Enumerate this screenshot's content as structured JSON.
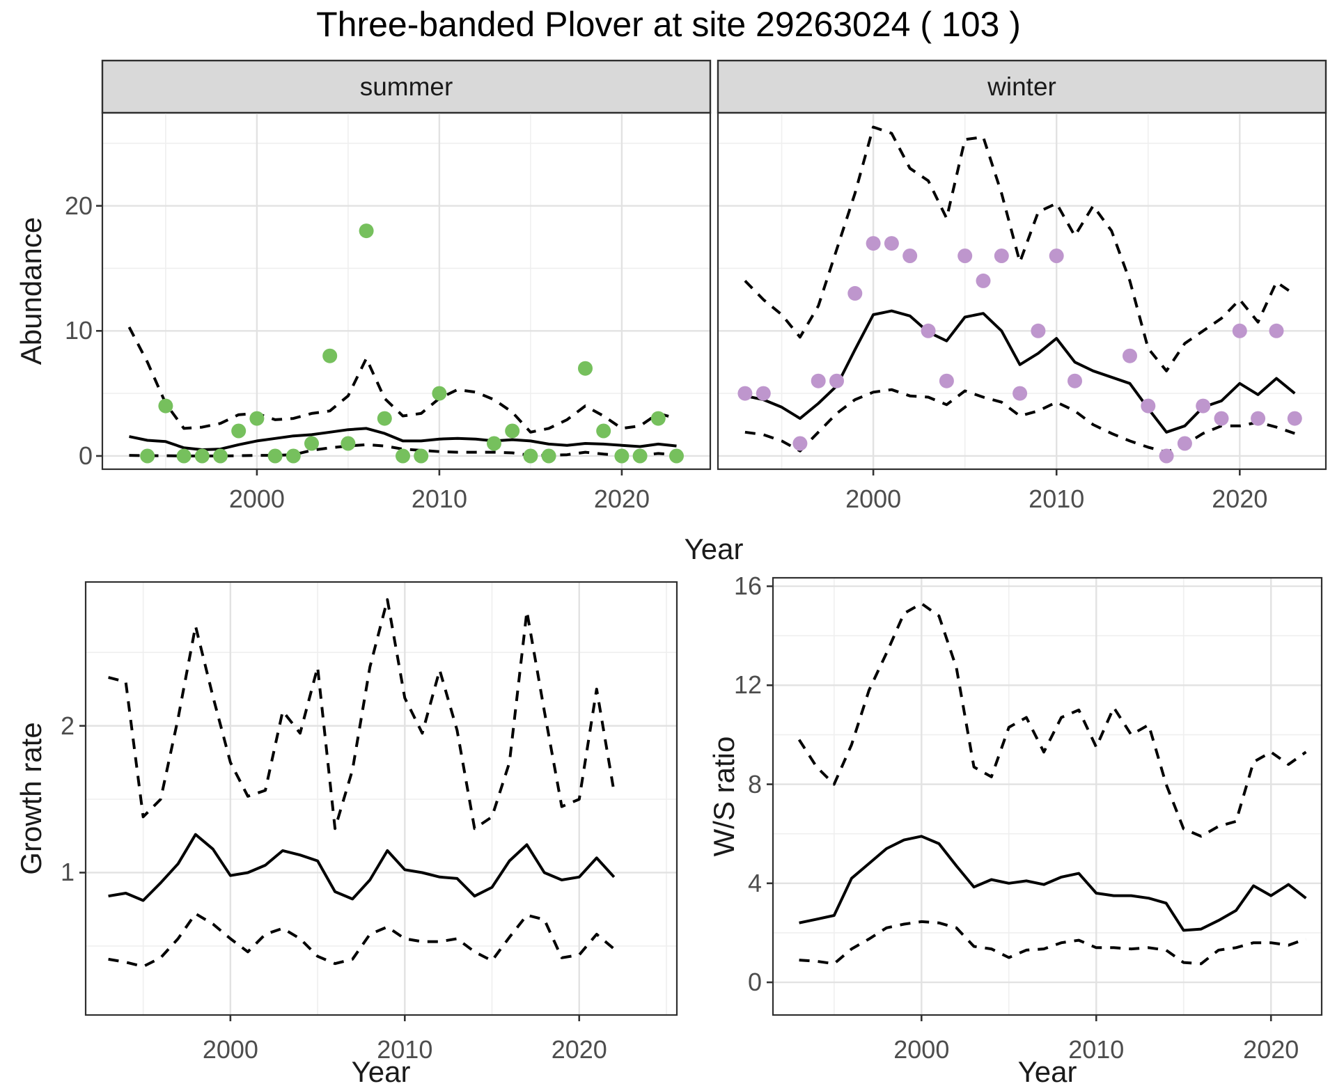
{
  "title": "Three-banded Plover at site 29263024 ( 103 )",
  "colors": {
    "summer_point": "#76C05D",
    "winter_point": "#BE96CD",
    "strip_bg": "#D9D9D9",
    "panel_border": "#2F2F2F",
    "grid_major": "#E2E2E2",
    "grid_minor": "#EFEFEF",
    "line": "#000000",
    "tick": "#333333",
    "axis_text": "#4d4d4d"
  },
  "chart_data": [
    {
      "id": "abundance-summer",
      "type": "line",
      "facet_label": "summer",
      "xlabel": "Year",
      "ylabel": "Abundance",
      "xlim": [
        1991.53,
        2024.85
      ],
      "ylim": [
        -1.06,
        27.44
      ],
      "x_ticks": [
        2000,
        2010,
        2020
      ],
      "x_minor": [
        1995,
        2005,
        2015
      ],
      "y_ticks": [
        0,
        10,
        20
      ],
      "y_minor": [
        5,
        15,
        25
      ],
      "years": [
        1993,
        1994,
        1995,
        1996,
        1997,
        1998,
        1999,
        2000,
        2001,
        2002,
        2003,
        2004,
        2005,
        2006,
        2007,
        2008,
        2009,
        2010,
        2011,
        2012,
        2013,
        2014,
        2015,
        2016,
        2017,
        2018,
        2019,
        2020,
        2021,
        2022,
        2023
      ],
      "series": [
        {
          "name": "lower-ci",
          "style": "dashed",
          "values": [
            0.05,
            0.02,
            0.02,
            0.0,
            0.0,
            0.0,
            0.02,
            0.05,
            0.05,
            0.1,
            0.45,
            0.65,
            0.8,
            0.9,
            0.8,
            0.55,
            0.45,
            0.35,
            0.3,
            0.3,
            0.3,
            0.25,
            0.05,
            0.05,
            0.1,
            0.3,
            0.15,
            0.05,
            0.05,
            0.2,
            0.1
          ]
        },
        {
          "name": "upper-ci",
          "style": "dashed",
          "values": [
            10.3,
            7.5,
            4.2,
            2.2,
            2.3,
            2.6,
            3.3,
            3.4,
            2.9,
            3.0,
            3.4,
            3.6,
            4.8,
            7.8,
            4.6,
            3.2,
            3.4,
            4.6,
            5.3,
            5.1,
            4.5,
            3.5,
            1.9,
            2.2,
            2.9,
            4.0,
            3.2,
            2.2,
            2.4,
            3.4,
            3.0
          ]
        },
        {
          "name": "median",
          "style": "solid",
          "values": [
            1.55,
            1.25,
            1.15,
            0.65,
            0.5,
            0.55,
            0.9,
            1.2,
            1.4,
            1.6,
            1.7,
            1.9,
            2.1,
            2.2,
            1.8,
            1.2,
            1.2,
            1.35,
            1.4,
            1.35,
            1.2,
            1.3,
            1.2,
            0.95,
            0.85,
            1.0,
            0.95,
            0.85,
            0.75,
            0.95,
            0.8
          ]
        }
      ],
      "points": {
        "name": "observed-count",
        "color_key": "summer_point",
        "years": [
          1994,
          1995,
          1996,
          1997,
          1998,
          1999,
          2000,
          2001,
          2002,
          2003,
          2004,
          2005,
          2006,
          2007,
          2008,
          2009,
          2010,
          2013,
          2014,
          2015,
          2016,
          2018,
          2019,
          2020,
          2021,
          2022,
          2023
        ],
        "values": [
          0,
          4,
          0,
          0,
          0,
          2,
          3,
          0,
          0,
          1,
          8,
          1,
          18,
          3,
          0,
          0,
          5,
          1,
          2,
          0,
          0,
          7,
          2,
          0,
          0,
          3,
          0
        ]
      }
    },
    {
      "id": "abundance-winter",
      "type": "line",
      "facet_label": "winter",
      "xlabel": "Year",
      "ylabel": "Abundance",
      "xlim": [
        1991.52,
        2024.7
      ],
      "ylim": [
        -1.06,
        27.44
      ],
      "x_ticks": [
        2000,
        2010,
        2020
      ],
      "x_minor": [
        1995,
        2005,
        2015
      ],
      "y_ticks": [],
      "y_minor": [
        5,
        15,
        25
      ],
      "y_grid_major": [
        0,
        10,
        20
      ],
      "years": [
        1993,
        1994,
        1995,
        1996,
        1997,
        1998,
        1999,
        2000,
        2001,
        2002,
        2003,
        2004,
        2005,
        2006,
        2007,
        2008,
        2009,
        2010,
        2011,
        2012,
        2013,
        2014,
        2015,
        2016,
        2017,
        2018,
        2019,
        2020,
        2021,
        2022,
        2023
      ],
      "series": [
        {
          "name": "lower-ci",
          "style": "dashed",
          "values": [
            1.9,
            1.7,
            1.2,
            0.4,
            1.9,
            3.4,
            4.5,
            5.1,
            5.3,
            4.8,
            4.7,
            4.1,
            5.2,
            4.7,
            4.3,
            3.2,
            3.6,
            4.3,
            3.6,
            2.5,
            1.8,
            1.2,
            0.7,
            0.3,
            0.9,
            1.8,
            2.4,
            2.4,
            2.7,
            2.3,
            1.8
          ]
        },
        {
          "name": "upper-ci",
          "style": "dashed",
          "values": [
            14.0,
            12.5,
            11.3,
            9.5,
            12.0,
            16.5,
            21.0,
            26.3,
            25.8,
            23.0,
            22.0,
            19.0,
            25.3,
            25.5,
            21.0,
            15.5,
            19.5,
            20.2,
            17.6,
            20.0,
            18.0,
            14.0,
            8.6,
            6.8,
            9.0,
            10.0,
            11.0,
            12.5,
            10.7,
            13.9,
            12.9
          ]
        },
        {
          "name": "median",
          "style": "solid",
          "values": [
            4.8,
            4.5,
            3.9,
            3.0,
            4.2,
            5.6,
            8.5,
            11.3,
            11.6,
            11.2,
            9.9,
            9.2,
            11.1,
            11.4,
            10.0,
            7.3,
            8.2,
            9.4,
            7.5,
            6.8,
            6.3,
            5.8,
            3.8,
            1.9,
            2.4,
            3.9,
            4.4,
            5.8,
            4.9,
            6.2,
            5.0
          ]
        }
      ],
      "points": {
        "name": "observed-count",
        "color_key": "winter_point",
        "years": [
          1993,
          1994,
          1996,
          1997,
          1998,
          1999,
          2000,
          2001,
          2002,
          2003,
          2004,
          2005,
          2006,
          2007,
          2008,
          2009,
          2010,
          2011,
          2014,
          2015,
          2016,
          2017,
          2018,
          2019,
          2020,
          2021,
          2022,
          2023
        ],
        "values": [
          5,
          5,
          1,
          6,
          6,
          13,
          17,
          17,
          16,
          10,
          6,
          16,
          14,
          16,
          5,
          10,
          16,
          6,
          8,
          4,
          0,
          1,
          4,
          3,
          10,
          3,
          10,
          3
        ]
      }
    },
    {
      "id": "growth-rate",
      "type": "line",
      "facet_label": "",
      "xlabel": "Year",
      "ylabel": "Growth rate",
      "xlim": [
        1991.7,
        2025.6
      ],
      "ylim": [
        0.03,
        2.98
      ],
      "x_ticks": [
        2000,
        2010,
        2020
      ],
      "x_minor": [
        1995,
        2005,
        2015,
        2025
      ],
      "y_ticks": [
        1,
        2
      ],
      "y_minor": [
        0.5,
        1.5,
        2.5
      ],
      "years": [
        1993,
        1994,
        1995,
        1996,
        1997,
        1998,
        1999,
        2000,
        2001,
        2002,
        2003,
        2004,
        2005,
        2006,
        2007,
        2008,
        2009,
        2010,
        2011,
        2012,
        2013,
        2014,
        2015,
        2016,
        2017,
        2018,
        2019,
        2020,
        2021,
        2022
      ],
      "series": [
        {
          "name": "lower-ci",
          "style": "dashed",
          "values": [
            0.41,
            0.39,
            0.36,
            0.42,
            0.55,
            0.72,
            0.65,
            0.55,
            0.46,
            0.58,
            0.62,
            0.55,
            0.43,
            0.38,
            0.41,
            0.58,
            0.63,
            0.55,
            0.53,
            0.53,
            0.55,
            0.46,
            0.4,
            0.56,
            0.71,
            0.68,
            0.42,
            0.44,
            0.58,
            0.48
          ]
        },
        {
          "name": "upper-ci",
          "style": "dashed",
          "values": [
            2.33,
            2.3,
            1.38,
            1.5,
            2.05,
            2.68,
            2.2,
            1.75,
            1.52,
            1.56,
            2.1,
            1.95,
            2.4,
            1.3,
            1.7,
            2.4,
            2.86,
            2.19,
            1.95,
            2.38,
            1.97,
            1.3,
            1.38,
            1.75,
            2.78,
            2.1,
            1.45,
            1.5,
            2.25,
            1.55
          ]
        },
        {
          "name": "median",
          "style": "solid",
          "values": [
            0.84,
            0.86,
            0.81,
            0.93,
            1.06,
            1.26,
            1.16,
            0.98,
            1.0,
            1.05,
            1.15,
            1.12,
            1.08,
            0.87,
            0.82,
            0.95,
            1.15,
            1.02,
            1.0,
            0.97,
            0.96,
            0.84,
            0.9,
            1.08,
            1.19,
            1.0,
            0.95,
            0.97,
            1.1,
            0.97
          ]
        }
      ],
      "points": null
    },
    {
      "id": "ws-ratio",
      "type": "line",
      "facet_label": "",
      "xlabel": "Year",
      "ylabel": "W/S ratio",
      "xlim": [
        1991.5,
        2022.9
      ],
      "ylim": [
        -1.32,
        16.34
      ],
      "x_ticks": [
        2000,
        2010,
        2020
      ],
      "x_minor": [
        1995,
        2005,
        2015
      ],
      "y_ticks": [
        0,
        4,
        8,
        12,
        16
      ],
      "y_minor": [
        2,
        6,
        10,
        14
      ],
      "years": [
        1993,
        1994,
        1995,
        1996,
        1997,
        1998,
        1999,
        2000,
        2001,
        2002,
        2003,
        2004,
        2005,
        2006,
        2007,
        2008,
        2009,
        2010,
        2011,
        2012,
        2013,
        2014,
        2015,
        2016,
        2017,
        2018,
        2019,
        2020,
        2021,
        2022
      ],
      "series": [
        {
          "name": "lower-ci",
          "style": "dashed",
          "values": [
            0.9,
            0.85,
            0.75,
            1.35,
            1.75,
            2.2,
            2.35,
            2.45,
            2.4,
            2.2,
            1.45,
            1.35,
            1.0,
            1.3,
            1.35,
            1.6,
            1.7,
            1.4,
            1.4,
            1.35,
            1.4,
            1.3,
            0.8,
            0.75,
            1.3,
            1.4,
            1.6,
            1.6,
            1.5,
            1.75
          ]
        },
        {
          "name": "upper-ci",
          "style": "dashed",
          "values": [
            9.8,
            8.7,
            8.0,
            9.6,
            11.8,
            13.3,
            14.9,
            15.3,
            14.8,
            12.7,
            8.7,
            8.3,
            10.3,
            10.7,
            9.3,
            10.7,
            11.0,
            9.5,
            11.1,
            10.0,
            10.4,
            8.0,
            6.2,
            5.9,
            6.3,
            6.5,
            8.9,
            9.3,
            8.8,
            9.3
          ]
        },
        {
          "name": "median",
          "style": "solid",
          "values": [
            2.4,
            2.55,
            2.7,
            4.2,
            4.8,
            5.4,
            5.75,
            5.9,
            5.6,
            4.7,
            3.85,
            4.15,
            4.0,
            4.1,
            3.95,
            4.25,
            4.4,
            3.6,
            3.5,
            3.5,
            3.4,
            3.2,
            2.1,
            2.15,
            2.5,
            2.9,
            3.9,
            3.5,
            3.95,
            3.4
          ]
        }
      ],
      "points": null
    }
  ]
}
